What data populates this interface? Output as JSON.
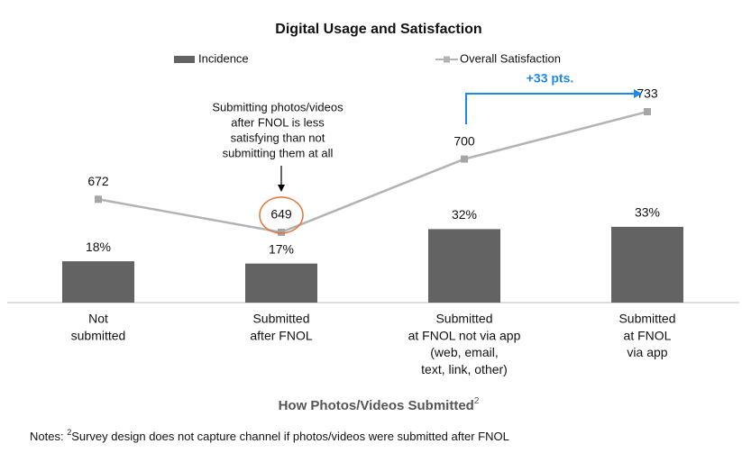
{
  "chart_data": {
    "type": "bar-line",
    "title": "Digital Usage and Satisfaction",
    "categories": [
      [
        "Not",
        "submitted"
      ],
      [
        "Submitted",
        "after FNOL"
      ],
      [
        "Submitted",
        "at FNOL not via app",
        "(web, email,",
        "text, link, other)"
      ],
      [
        "Submitted",
        "at FNOL",
        "via app"
      ]
    ],
    "series": [
      {
        "name": "Incidence",
        "type": "bar",
        "color": "#636363",
        "values": [
          18,
          17,
          32,
          33
        ],
        "value_labels": [
          "18%",
          "17%",
          "32%",
          "33%"
        ]
      },
      {
        "name": "Overall Satisfaction",
        "type": "line",
        "axis": "y2",
        "color": "#b3b3b3",
        "values": [
          672,
          649,
          700,
          733
        ]
      }
    ],
    "ylim": [
      0,
      100
    ],
    "y2lim": [
      600,
      760
    ],
    "xlabel": {
      "text": "How Photos/Videos Submitted",
      "sup": "2"
    },
    "annotations": [
      {
        "text": [
          "Submitting photos/videos",
          "after FNOL is less",
          "satisfying than not",
          "submitting them at all"
        ],
        "color": "#000000",
        "highlight_color": "#e8703a"
      },
      {
        "text": "+33 pts.",
        "color": "#1e88e5"
      }
    ],
    "notes": {
      "prefix": "Notes: ",
      "sup": "2",
      "text": "Survey design does not capture channel if photos/videos were submitted after FNOL"
    }
  }
}
